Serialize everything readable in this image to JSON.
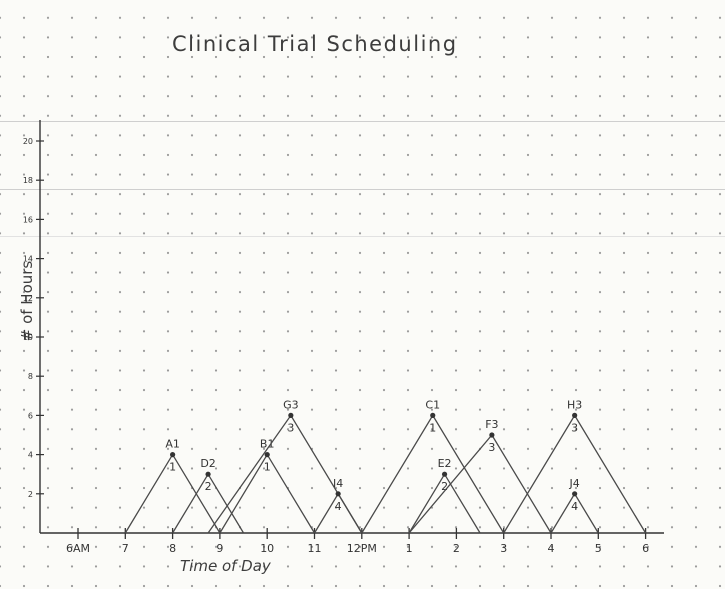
{
  "title": "Clinical Trial Scheduling",
  "chart_data": {
    "type": "line",
    "xlabel": "Time of Day",
    "ylabel": "# of Hours",
    "x_ticks": [
      {
        "t": 6,
        "label": "6AM"
      },
      {
        "t": 7,
        "label": "7"
      },
      {
        "t": 8,
        "label": "8"
      },
      {
        "t": 9,
        "label": "9"
      },
      {
        "t": 10,
        "label": "10"
      },
      {
        "t": 11,
        "label": "11"
      },
      {
        "t": 12,
        "label": "12PM"
      },
      {
        "t": 13,
        "label": "1"
      },
      {
        "t": 14,
        "label": "2"
      },
      {
        "t": 15,
        "label": "3"
      },
      {
        "t": 16,
        "label": "4"
      },
      {
        "t": 17,
        "label": "5"
      },
      {
        "t": 18,
        "label": "6"
      }
    ],
    "y_ticks": [
      {
        "v": 2,
        "label": "2"
      },
      {
        "v": 4,
        "label": "4"
      },
      {
        "v": 6,
        "label": "6"
      },
      {
        "v": 8,
        "label": "8"
      },
      {
        "v": 10,
        "label": "10"
      },
      {
        "v": 12,
        "label": "12"
      },
      {
        "v": 14,
        "label": "14"
      },
      {
        "v": 16,
        "label": "16"
      },
      {
        "v": 18,
        "label": "18"
      },
      {
        "v": 20,
        "label": "20"
      }
    ],
    "xlim": [
      5.2,
      19.4
    ],
    "ylim": [
      0,
      22
    ],
    "series": [
      {
        "name": "A1",
        "number": "1",
        "start": 7.0,
        "peak_t": 8.0,
        "peak": 4,
        "end": 9.0
      },
      {
        "name": "D2",
        "number": "2",
        "start": 8.0,
        "peak_t": 8.75,
        "peak": 3,
        "end": 9.5
      },
      {
        "name": "B1",
        "number": "1",
        "start": 9.0,
        "peak_t": 10.0,
        "peak": 4,
        "end": 11.0
      },
      {
        "name": "G3",
        "number": "3",
        "start": 8.75,
        "peak_t": 10.5,
        "peak": 6,
        "end": 12.0
      },
      {
        "name": "I4",
        "number": "4",
        "start": 11.0,
        "peak_t": 11.5,
        "peak": 2,
        "end": 12.0
      },
      {
        "name": "C1",
        "number": "1",
        "start": 12.0,
        "peak_t": 13.5,
        "peak": 6,
        "end": 15.0
      },
      {
        "name": "E2",
        "number": "2",
        "start": 13.0,
        "peak_t": 13.75,
        "peak": 3,
        "end": 14.5
      },
      {
        "name": "F3",
        "number": "3",
        "start": 13.0,
        "peak_t": 14.75,
        "peak": 5,
        "end": 16.0
      },
      {
        "name": "H3",
        "number": "3",
        "start": 15.0,
        "peak_t": 16.5,
        "peak": 6,
        "end": 18.0
      },
      {
        "name": "J4",
        "number": "4",
        "start": 16.0,
        "peak_t": 16.5,
        "peak": 2,
        "end": 17.0
      }
    ]
  }
}
